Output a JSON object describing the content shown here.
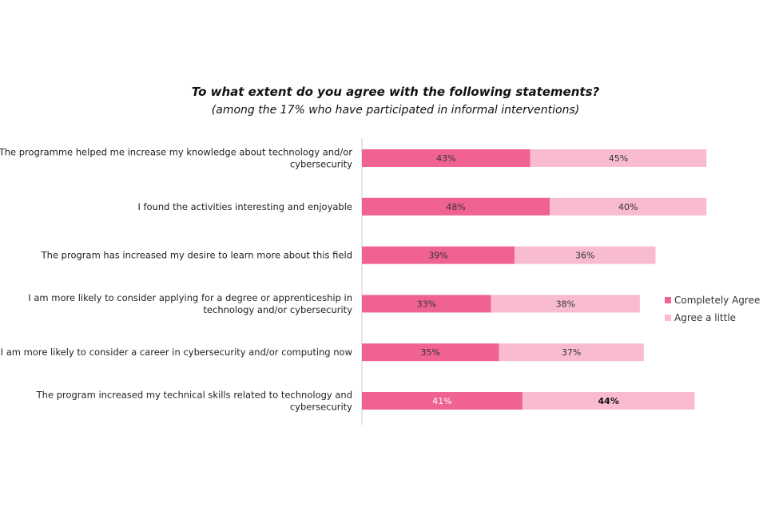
{
  "chart_data": {
    "type": "bar",
    "orientation": "horizontal",
    "stacked": true,
    "title": "To what extent do you agree with the following statements?",
    "subtitle": "(among the 17% who have participated in informal interventions)",
    "categories": [
      [
        "The programme helped me increase my knowledge about technology and/or",
        "cybersecurity"
      ],
      [
        "I found the activities interesting and enjoyable"
      ],
      [
        "The program has increased my desire to learn more about this field"
      ],
      [
        "I am more likely to consider applying for a degree or apprenticeship in",
        "technology and/or cybersecurity"
      ],
      [
        "I am more likely to consider a career in cybersecurity and/or computing now"
      ],
      [
        "The program increased my technical skills related to technology and",
        "cybersecurity"
      ]
    ],
    "series": [
      {
        "name": "Completely Agree",
        "color": "#f06292",
        "values": [
          43,
          48,
          39,
          33,
          35,
          41
        ],
        "labels": [
          "43%",
          "48%",
          "39%",
          "33%",
          "35%",
          "41%"
        ]
      },
      {
        "name": "Agree a little",
        "color": "#f8bbd0",
        "values": [
          45,
          40,
          36,
          38,
          37,
          44
        ],
        "labels": [
          "45%",
          "40%",
          "36%",
          "38%",
          "37%",
          "44%"
        ]
      }
    ],
    "legend_position": "right",
    "grid": false
  }
}
